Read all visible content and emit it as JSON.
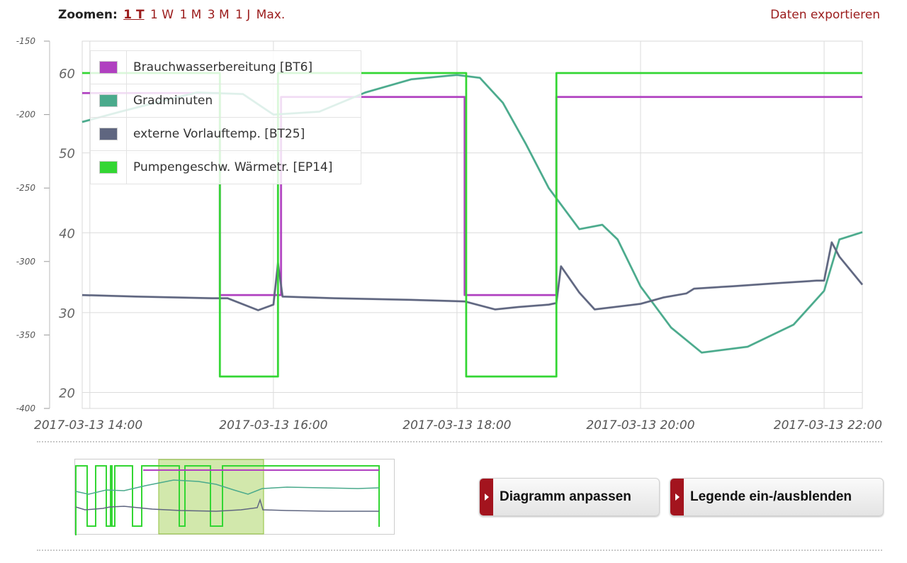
{
  "toolbar": {
    "zoom_label": "Zoomen:",
    "zoom_options": [
      "1 T",
      "1 W",
      "1 M",
      "3 M",
      "1 J",
      "Max."
    ],
    "active_zoom": "1 T",
    "export_label": "Daten exportieren"
  },
  "buttons": {
    "adjust_chart": "Diagramm anpassen",
    "toggle_legend": "Legende ein-/ausblenden"
  },
  "colors": {
    "accent": "#9b1c1c",
    "button_tab": "#a3141e",
    "navigator_selection": "#a5d15a"
  },
  "chart_data": {
    "type": "line",
    "x_axis": {
      "ticks": [
        "2017-03-13 14:00",
        "2017-03-13 16:00",
        "2017-03-13 18:00",
        "2017-03-13 20:00",
        "2017-03-13 22:00"
      ],
      "range": [
        "2017-03-13 13:55",
        "2017-03-13 22:25"
      ]
    },
    "y_axis_left": {
      "ticks": [
        20,
        30,
        40,
        50,
        60
      ],
      "range": [
        18,
        64
      ]
    },
    "y_axis_right": {
      "ticks": [
        -150,
        -200,
        -250,
        -300,
        -350,
        -400
      ],
      "range": [
        -400,
        -150
      ]
    },
    "grid": true,
    "legend": {
      "placement": "top-left",
      "entries": [
        {
          "name": "Brauchwasserbereitung [BT6]",
          "color": "#b040c0"
        },
        {
          "name": "Gradminuten",
          "color": "#4aaa8c"
        },
        {
          "name": "externe Vorlauftemp. [BT25]",
          "color": "#5f6680"
        },
        {
          "name": "Pumpengeschw. Wärmetr. [EP14]",
          "color": "#33d633"
        }
      ]
    },
    "series": [
      {
        "name": "Brauchwasserbereitung [BT6]",
        "axis": "left",
        "color": "#b040c0",
        "step": true,
        "x": [
          "2017-03-13 13:55",
          "2017-03-13 15:25",
          "2017-03-13 15:25",
          "2017-03-13 16:05",
          "2017-03-13 16:05",
          "2017-03-13 18:05",
          "2017-03-13 18:05",
          "2017-03-13 19:05",
          "2017-03-13 19:05",
          "2017-03-13 22:25"
        ],
        "y": [
          57.5,
          57.5,
          32.2,
          32.2,
          57.0,
          57.0,
          32.2,
          32.2,
          57.0,
          57.0
        ]
      },
      {
        "name": "Gradminuten",
        "axis": "right",
        "color": "#4aaa8c",
        "x": [
          "2017-03-13 13:55",
          "2017-03-13 14:20",
          "2017-03-13 14:50",
          "2017-03-13 15:10",
          "2017-03-13 15:40",
          "2017-03-13 16:00",
          "2017-03-13 16:30",
          "2017-03-13 17:00",
          "2017-03-13 17:30",
          "2017-03-13 18:00",
          "2017-03-13 18:15",
          "2017-03-13 18:30",
          "2017-03-13 18:45",
          "2017-03-13 19:00",
          "2017-03-13 19:20",
          "2017-03-13 19:35",
          "2017-03-13 19:45",
          "2017-03-13 20:00",
          "2017-03-13 20:20",
          "2017-03-13 20:40",
          "2017-03-13 21:10",
          "2017-03-13 21:40",
          "2017-03-13 22:00",
          "2017-03-13 22:10",
          "2017-03-13 22:25"
        ],
        "y": [
          -205,
          -198,
          -190,
          -185,
          -186,
          -200,
          -198,
          -185,
          -176,
          -173,
          -175,
          -192,
          -220,
          -250,
          -278,
          -275,
          -285,
          -317,
          -345,
          -362,
          -358,
          -343,
          -320,
          -285,
          -280
        ]
      },
      {
        "name": "externe Vorlauftemp. [BT25]",
        "axis": "left",
        "color": "#5f6680",
        "x": [
          "2017-03-13 13:55",
          "2017-03-13 14:30",
          "2017-03-13 15:20",
          "2017-03-13 15:30",
          "2017-03-13 15:50",
          "2017-03-13 16:00",
          "2017-03-13 16:03",
          "2017-03-13 16:06",
          "2017-03-13 16:40",
          "2017-03-13 17:30",
          "2017-03-13 18:05",
          "2017-03-13 18:25",
          "2017-03-13 18:40",
          "2017-03-13 19:00",
          "2017-03-13 19:05",
          "2017-03-13 19:08",
          "2017-03-13 19:20",
          "2017-03-13 19:30",
          "2017-03-13 20:00",
          "2017-03-13 20:15",
          "2017-03-13 20:30",
          "2017-03-13 20:35",
          "2017-03-13 21:00",
          "2017-03-13 21:30",
          "2017-03-13 21:55",
          "2017-03-13 22:00",
          "2017-03-13 22:05",
          "2017-03-13 22:10",
          "2017-03-13 22:25"
        ],
        "y": [
          32.2,
          32.0,
          31.8,
          31.8,
          30.3,
          31.0,
          36.2,
          32.0,
          31.8,
          31.6,
          31.4,
          30.4,
          30.7,
          31.0,
          31.2,
          35.8,
          32.5,
          30.4,
          31.1,
          31.9,
          32.4,
          33.0,
          33.3,
          33.7,
          34.0,
          34.0,
          38.8,
          37.0,
          33.5
        ]
      },
      {
        "name": "Pumpengeschw. Wärmetr. [EP14]",
        "axis": "left",
        "color": "#33d633",
        "step": true,
        "x": [
          "2017-03-13 13:55",
          "2017-03-13 15:25",
          "2017-03-13 15:25",
          "2017-03-13 16:03",
          "2017-03-13 16:03",
          "2017-03-13 18:06",
          "2017-03-13 18:06",
          "2017-03-13 19:05",
          "2017-03-13 19:05",
          "2017-03-13 22:25"
        ],
        "y": [
          60.0,
          60.0,
          22.0,
          22.0,
          60.0,
          60.0,
          22.0,
          22.0,
          60.0,
          60.0
        ]
      }
    ]
  }
}
